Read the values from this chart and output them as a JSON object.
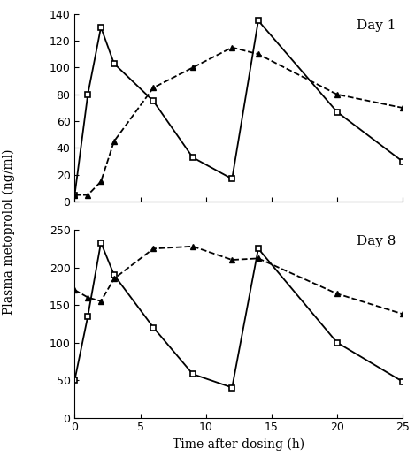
{
  "day1": {
    "square_x": [
      0,
      1,
      2,
      3,
      6,
      9,
      12,
      14,
      20,
      25
    ],
    "square_y": [
      5,
      80,
      130,
      103,
      75,
      33,
      17,
      135,
      67,
      30
    ],
    "triangle_x": [
      0,
      1,
      2,
      3,
      6,
      9,
      12,
      14,
      20,
      25
    ],
    "triangle_y": [
      5,
      5,
      15,
      45,
      85,
      100,
      115,
      110,
      80,
      70
    ],
    "ylim": [
      0,
      140
    ],
    "yticks": [
      0,
      20,
      40,
      60,
      80,
      100,
      120,
      140
    ],
    "title": "Day 1"
  },
  "day8": {
    "square_x": [
      0,
      1,
      2,
      3,
      6,
      9,
      12,
      14,
      20,
      25
    ],
    "square_y": [
      50,
      135,
      233,
      190,
      120,
      58,
      40,
      225,
      100,
      48
    ],
    "triangle_x": [
      0,
      1,
      2,
      3,
      6,
      9,
      12,
      14,
      20,
      25
    ],
    "triangle_y": [
      170,
      160,
      155,
      185,
      225,
      228,
      210,
      212,
      165,
      138
    ],
    "ylim": [
      0,
      250
    ],
    "yticks": [
      0,
      50,
      100,
      150,
      200,
      250
    ],
    "title": "Day 8"
  },
  "xlim": [
    0,
    25
  ],
  "xticks": [
    0,
    5,
    10,
    15,
    20,
    25
  ],
  "xlabel": "Time after dosing (h)",
  "ylabel": "Plasma metoprolol (ng/ml)",
  "bg_color": "white",
  "linewidth": 1.3,
  "markersize": 5,
  "title_fontsize": 11,
  "label_fontsize": 10,
  "tick_fontsize": 9
}
